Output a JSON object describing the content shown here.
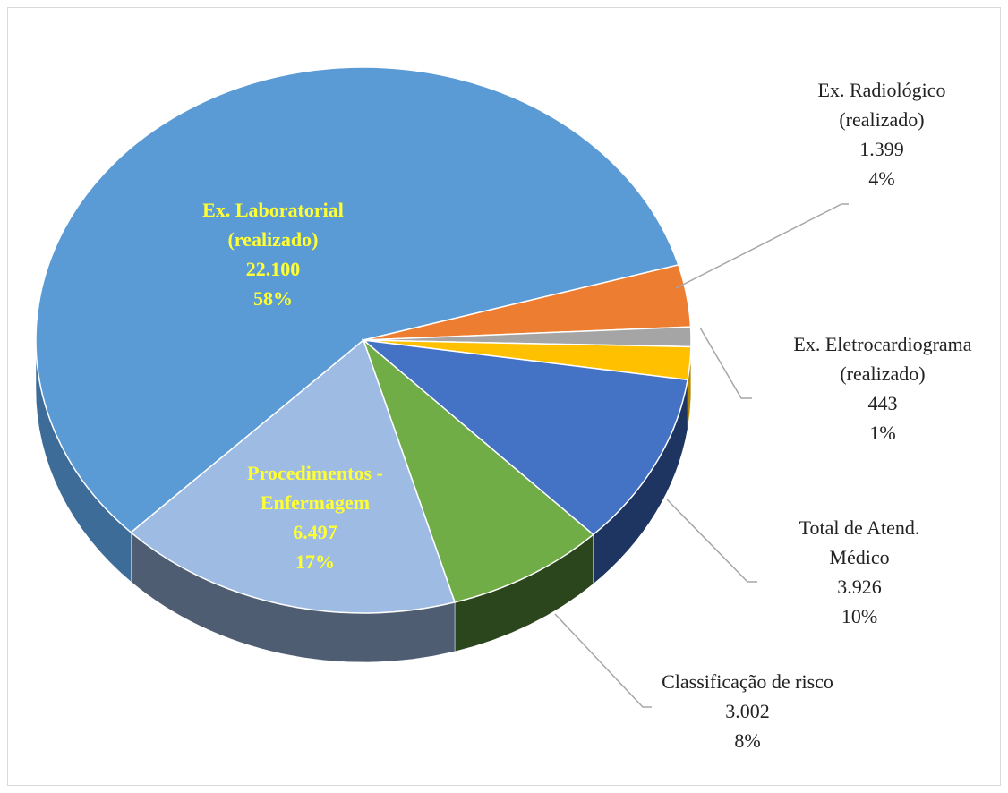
{
  "chart_data": {
    "type": "pie3d",
    "categories": [
      "Ex. Laboratorial (realizado)",
      "Ex. Radiológico (realizado)",
      "Ex. Eletrocardiograma (realizado)",
      null,
      "Total de Atend. Médico",
      "Classificação de risco",
      "Procedimentos - Enfermagem"
    ],
    "values": [
      22100,
      1399,
      443,
      736,
      3926,
      3002,
      6497
    ],
    "value_labels": [
      "22.100",
      "1.399",
      "443",
      null,
      "3.926",
      "3.002",
      "6.497"
    ],
    "percentages": [
      58,
      4,
      1,
      null,
      10,
      8,
      17
    ],
    "percentage_labels": [
      "58%",
      "4%",
      "1%",
      null,
      "10%",
      "8%",
      "17%"
    ],
    "colors": [
      "#5b9bd5",
      "#ed7d31",
      "#a5a5a5",
      "#ffc000",
      "#4472c4",
      "#70ad47",
      "#9dbbe3"
    ],
    "side_colors": [
      "#3d6c99",
      "#a6531d",
      "#6e6e6e",
      "#b38600",
      "#1e3461",
      "#2b451c",
      "#4f5d72"
    ]
  }
}
